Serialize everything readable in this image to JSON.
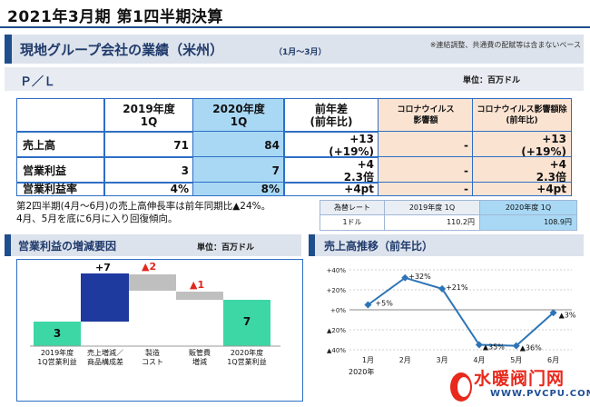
{
  "page_title": "2021年3月期 第1四半期決算",
  "section": {
    "title": "現地グループ会社の業績（米州）",
    "period": "（1月～3月）",
    "note": "※連結調整、共通費の配賦等は含まないベース"
  },
  "pl": {
    "label": "Ｐ／Ｌ",
    "unit": "単位：百万ドル",
    "headers": {
      "y2019": "2019年度\n1Q",
      "y2020": "2020年度\n1Q",
      "yoy": "前年差\n(前年比)",
      "covid_impact": "コロナウイルス\n影響額",
      "excl_covid": "コロナウイルス影響額除\n(前年比)"
    },
    "rows": [
      {
        "name": "売上高",
        "y2019": "71",
        "y2020": "84",
        "yoy": "+13\n(+19%)",
        "covid_impact": "-",
        "excl_covid": "+13\n(+19%)"
      },
      {
        "name": "営業利益",
        "y2019": "3",
        "y2020": "7",
        "yoy": "+4\n2.3倍",
        "covid_impact": "-",
        "excl_covid": "+4\n2.3倍"
      },
      {
        "name": "営業利益率",
        "y2019": "4%",
        "y2020": "8%",
        "yoy": "+4pt",
        "covid_impact": "-",
        "excl_covid": "+4pt"
      }
    ],
    "note_line1": "第2四半期(4月～6月)の売上高伸長率は前年同期比▲24%。",
    "note_line2": "4月、5月を底に6月に入り回復傾向。"
  },
  "fx": {
    "head_label": "為替レート",
    "head_2019": "2019年度 1Q",
    "head_2020": "2020年度 1Q",
    "row_label": "1ドル",
    "rate_2019": "110.2円",
    "rate_2020": "108.9円"
  },
  "operating_profit": {
    "title": "営業利益の増減要因",
    "unit": "単位：百万ドル",
    "bars": [
      {
        "label": "2019年度\n1Q営業利益",
        "value_label": "3"
      },
      {
        "label": "売上増減／\n商品構成差",
        "value_label": "+7"
      },
      {
        "label": "製造\nコスト",
        "value_label": "▲2"
      },
      {
        "label": "販管費\n増減",
        "value_label": "▲1"
      },
      {
        "label": "2020年度\n1Q営業利益",
        "value_label": "7"
      }
    ]
  },
  "sales_trend": {
    "title": "売上高推移（前年比）",
    "year_label": "2020年",
    "chart_data": {
      "type": "line",
      "categories": [
        "1月",
        "2月",
        "3月",
        "4月",
        "5月",
        "6月"
      ],
      "series": [
        {
          "values": [
            5,
            32,
            21,
            -35,
            -36,
            -3
          ]
        }
      ],
      "data_labels": [
        "+5%",
        "+32%",
        "+21%",
        "▲35%",
        "▲36%",
        "▲3%"
      ],
      "y_ticks": [
        "+40%",
        "+20%",
        "+0%",
        "▲20%",
        "▲40%"
      ],
      "ylim": [
        -40,
        40
      ],
      "grid": true,
      "color": "#2e75b6"
    }
  },
  "watermark": {
    "cn": "水暖阀门网",
    "url": "WWW.PVCPU.COM"
  }
}
